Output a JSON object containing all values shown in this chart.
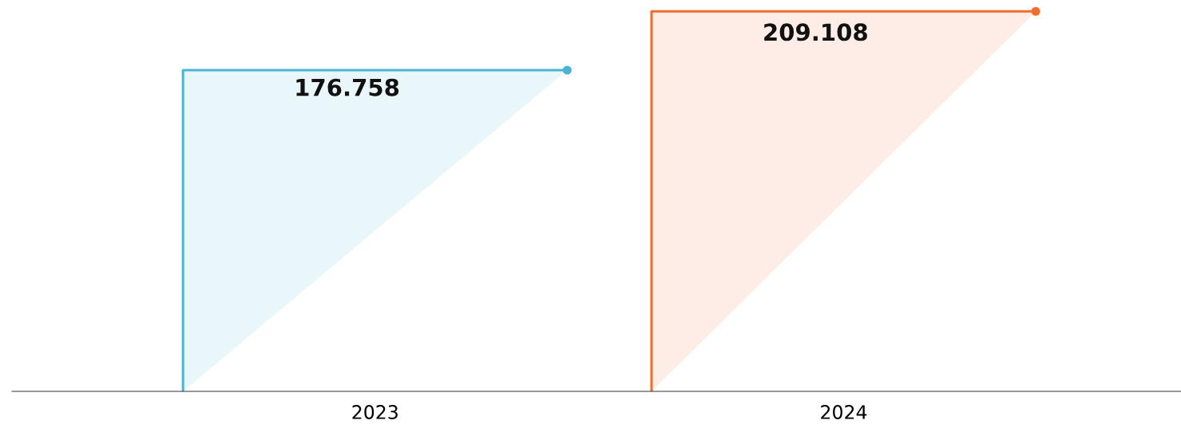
{
  "chart_data": {
    "type": "bar",
    "categories": [
      "2023",
      "2024"
    ],
    "values": [
      176.758,
      209.108
    ],
    "colors": [
      "#4bb3d3",
      "#f26d2e"
    ],
    "data_labels": true
  }
}
